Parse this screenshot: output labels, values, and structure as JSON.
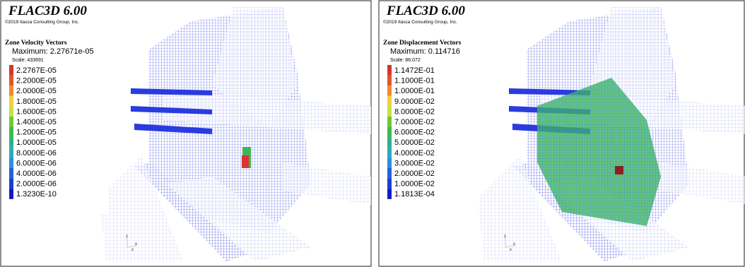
{
  "panels": [
    {
      "title": "FLAC3D 6.00",
      "copyright": "©2019 Itasca Consulting Group, Inc.",
      "legend_title": "Zone Velocity Vectors",
      "maximum": "Maximum: 2.27671e-05",
      "scale": "Scale: 433691",
      "entries": [
        {
          "label": "2.2767E-05",
          "color": "#d8342a"
        },
        {
          "label": "2.2000E-05",
          "color": "#e2542a"
        },
        {
          "label": "2.0000E-05",
          "color": "#f08a30"
        },
        {
          "label": "1.8000E-05",
          "color": "#f2d040"
        },
        {
          "label": "1.6000E-05",
          "color": "#c8e040"
        },
        {
          "label": "1.4000E-05",
          "color": "#70c838"
        },
        {
          "label": "1.2000E-05",
          "color": "#40b84a"
        },
        {
          "label": "1.0000E-05",
          "color": "#30b088"
        },
        {
          "label": "8.0000E-06",
          "color": "#30a8c0"
        },
        {
          "label": "6.0000E-06",
          "color": "#2e8ed8"
        },
        {
          "label": "4.0000E-06",
          "color": "#2262d8"
        },
        {
          "label": "2.0000E-06",
          "color": "#1840d0"
        },
        {
          "label": "1.3230E-10",
          "color": "#1018c8"
        }
      ],
      "axes": [
        "z",
        "x",
        "y"
      ]
    },
    {
      "title": "FLAC3D 6.00",
      "copyright": "©2019 Itasca Consulting Group, Inc.",
      "legend_title": "Zone Displacement Vectors",
      "maximum": "Maximum: 0.114716",
      "scale": "Scale: 86.072",
      "entries": [
        {
          "label": "1.1472E-01",
          "color": "#d8342a"
        },
        {
          "label": "1.1000E-01",
          "color": "#e2542a"
        },
        {
          "label": "1.0000E-01",
          "color": "#f08a30"
        },
        {
          "label": "9.0000E-02",
          "color": "#f2d040"
        },
        {
          "label": "8.0000E-02",
          "color": "#c8e040"
        },
        {
          "label": "7.0000E-02",
          "color": "#70c838"
        },
        {
          "label": "6.0000E-02",
          "color": "#40b84a"
        },
        {
          "label": "5.0000E-02",
          "color": "#30b088"
        },
        {
          "label": "4.0000E-02",
          "color": "#30a8c0"
        },
        {
          "label": "3.0000E-02",
          "color": "#2e8ed8"
        },
        {
          "label": "2.0000E-02",
          "color": "#2262d8"
        },
        {
          "label": "1.0000E-02",
          "color": "#1840d0"
        },
        {
          "label": "1.1813E-04",
          "color": "#1018c8"
        }
      ],
      "axes": [
        "z",
        "x",
        "y"
      ]
    }
  ]
}
